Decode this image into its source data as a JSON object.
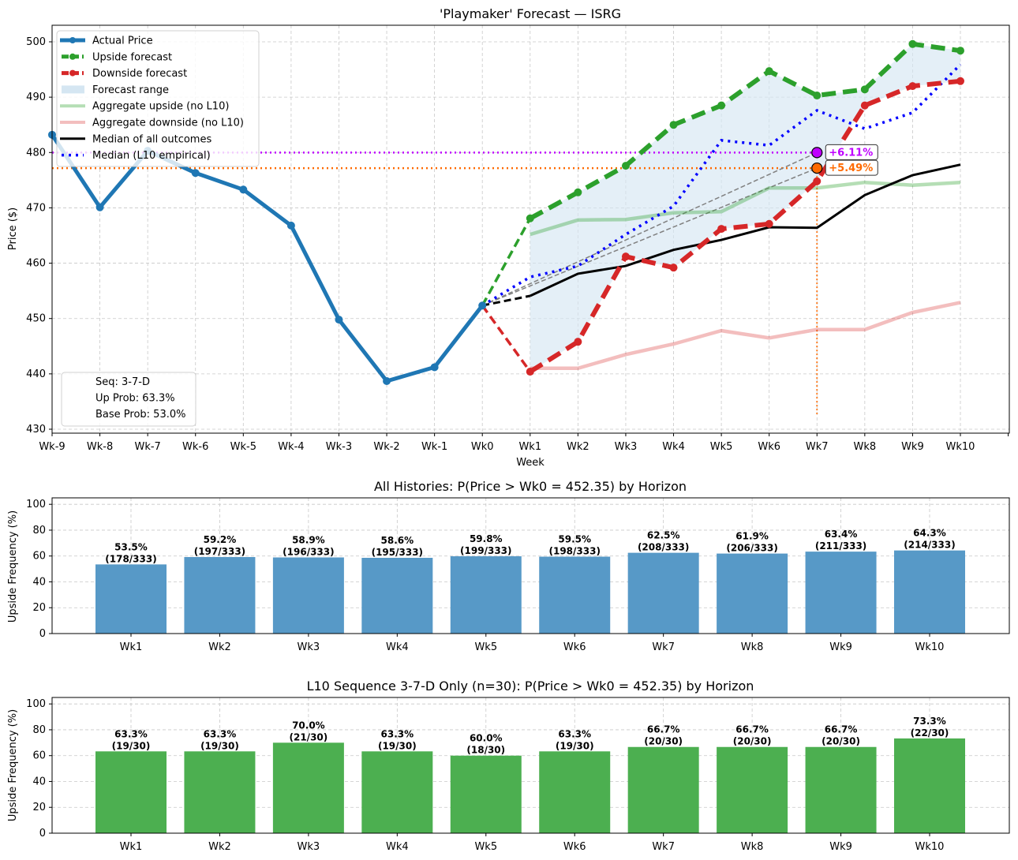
{
  "chart_data": [
    {
      "type": "line",
      "title": "'Playmaker' Forecast — ISRG",
      "xlabel": "Week",
      "ylabel": "Price ($)",
      "x": [
        "Wk-9",
        "Wk-8",
        "Wk-7",
        "Wk-6",
        "Wk-5",
        "Wk-4",
        "Wk-3",
        "Wk-2",
        "Wk-1",
        "Wk0",
        "Wk1",
        "Wk2",
        "Wk3",
        "Wk4",
        "Wk5",
        "Wk6",
        "Wk7",
        "Wk8",
        "Wk9",
        "Wk10"
      ],
      "ylim": [
        429,
        503
      ],
      "yticks": [
        430,
        440,
        450,
        460,
        470,
        480,
        490,
        500
      ],
      "grid": true,
      "legend_position": "top-left",
      "series": [
        {
          "name": "Actual Price",
          "color": "#1f77b4",
          "x_start": 0,
          "values": [
            483.2,
            470.1,
            480.3,
            476.3,
            473.3,
            466.8,
            449.8,
            438.7,
            441.2,
            452.35
          ]
        },
        {
          "name": "Upside forecast",
          "color": "#2ca02c",
          "x_start": 9,
          "values": [
            452.35,
            468.1,
            472.8,
            477.6,
            485.0,
            488.5,
            494.7,
            490.3,
            491.4,
            499.6,
            498.4
          ]
        },
        {
          "name": "Downside forecast",
          "color": "#d62728",
          "x_start": 9,
          "values": [
            452.35,
            440.4,
            445.8,
            461.2,
            459.2,
            466.2,
            467.1,
            474.8,
            488.5,
            492.0,
            492.9
          ]
        },
        {
          "name": "Forecast range",
          "color": "#c6dcec",
          "note": "shaded between upside and downside, Wk1–Wk10"
        },
        {
          "name": "Aggregate upside (no L10)",
          "color": "#2ca02c",
          "x_start": 10,
          "values": [
            465.2,
            467.8,
            467.9,
            469.1,
            469.3,
            473.6,
            473.6,
            474.6,
            474.1,
            474.6
          ]
        },
        {
          "name": "Aggregate downside (no L10)",
          "color": "#d62728",
          "x_start": 10,
          "values": [
            441.0,
            441.0,
            443.5,
            445.4,
            447.8,
            446.5,
            448.0,
            448.0,
            451.1,
            452.9
          ]
        },
        {
          "name": "Median of all outcomes",
          "color": "#000000",
          "x_start": 9,
          "values": [
            452.35,
            454.1,
            458.1,
            459.5,
            462.4,
            464.2,
            466.5,
            466.4,
            472.3,
            475.9,
            477.8
          ]
        },
        {
          "name": "Median (L10 empirical)",
          "color": "#0000ff",
          "x_start": 9,
          "values": [
            452.35,
            457.5,
            459.5,
            465.2,
            470.3,
            482.2,
            481.3,
            487.6,
            484.3,
            487.2,
            495.9
          ]
        }
      ],
      "targets": [
        {
          "label": "+6.11%",
          "value": 479.99,
          "at": "Wk7",
          "color": "#bf00ff"
        },
        {
          "label": "+5.49%",
          "value": 477.18,
          "at": "Wk7",
          "color": "#ff6a00"
        }
      ],
      "vline": {
        "at": "Wk7",
        "color": "#ff6a00"
      },
      "info_box": [
        "Seq: 3-7-D",
        "Up Prob: 63.3%",
        "Base Prob: 53.0%"
      ]
    },
    {
      "type": "bar",
      "title": "All Histories: P(Price > Wk0 = 452.35) by Horizon",
      "xlabel": "",
      "ylabel": "Upside Frequency (%)",
      "ylim": [
        0,
        105
      ],
      "yticks": [
        0,
        20,
        40,
        60,
        80,
        100
      ],
      "grid": true,
      "color": "#5799c7",
      "categories": [
        "Wk1",
        "Wk2",
        "Wk3",
        "Wk4",
        "Wk5",
        "Wk6",
        "Wk7",
        "Wk8",
        "Wk9",
        "Wk10"
      ],
      "values": [
        53.5,
        59.2,
        58.9,
        58.6,
        59.8,
        59.5,
        62.5,
        61.9,
        63.4,
        64.3
      ],
      "labels": [
        "53.5%",
        "59.2%",
        "58.9%",
        "58.6%",
        "59.8%",
        "59.5%",
        "62.5%",
        "61.9%",
        "63.4%",
        "64.3%"
      ],
      "counts": [
        "(178/333)",
        "(197/333)",
        "(196/333)",
        "(195/333)",
        "(199/333)",
        "(198/333)",
        "(208/333)",
        "(206/333)",
        "(211/333)",
        "(214/333)"
      ]
    },
    {
      "type": "bar",
      "title": "L10 Sequence 3-7-D Only (n=30): P(Price > Wk0 = 452.35) by Horizon",
      "xlabel": "",
      "ylabel": "Upside Frequency (%)",
      "ylim": [
        0,
        105
      ],
      "yticks": [
        0,
        20,
        40,
        60,
        80,
        100
      ],
      "grid": true,
      "color": "#4caf50",
      "categories": [
        "Wk1",
        "Wk2",
        "Wk3",
        "Wk4",
        "Wk5",
        "Wk6",
        "Wk7",
        "Wk8",
        "Wk9",
        "Wk10"
      ],
      "values": [
        63.3,
        63.3,
        70.0,
        63.3,
        60.0,
        63.3,
        66.7,
        66.7,
        66.7,
        73.3
      ],
      "labels": [
        "63.3%",
        "63.3%",
        "70.0%",
        "63.3%",
        "60.0%",
        "63.3%",
        "66.7%",
        "66.7%",
        "66.7%",
        "73.3%"
      ],
      "counts": [
        "(19/30)",
        "(19/30)",
        "(21/30)",
        "(19/30)",
        "(18/30)",
        "(19/30)",
        "(20/30)",
        "(20/30)",
        "(20/30)",
        "(22/30)"
      ]
    }
  ]
}
